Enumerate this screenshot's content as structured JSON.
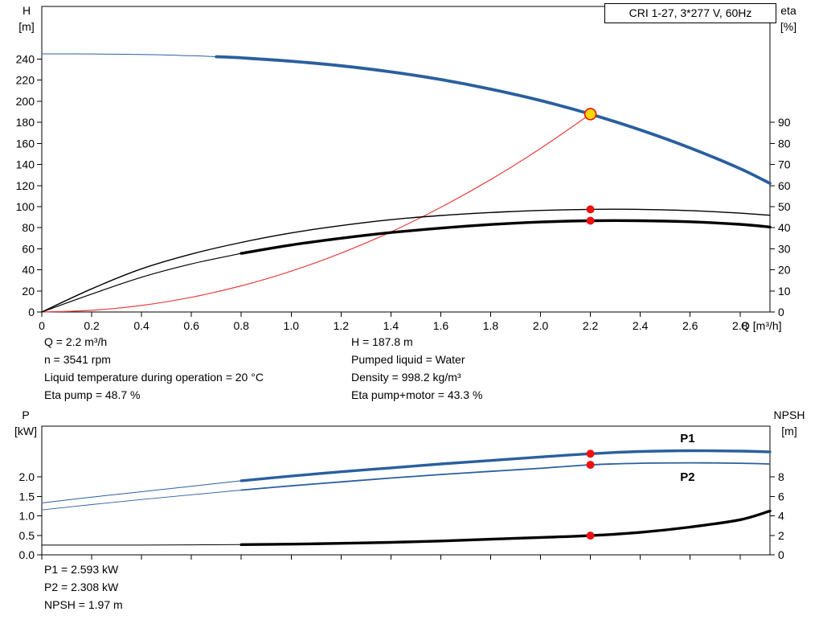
{
  "title_box": "CRI 1-27, 3*277 V, 60Hz",
  "colors": {
    "curve_blue": "#2a5f9e",
    "curve_red": "#e84040",
    "curve_black": "#000000",
    "marker_red": "#ee1111",
    "duty_fill": "#ffd800",
    "duty_ring": "#ee1111",
    "frame": "#000000",
    "series_label_blue": "#2a5f9e"
  },
  "annotations": {
    "mid_left": [
      "Q = 2.2 m³/h",
      "n = 3541 rpm",
      "Liquid temperature during operation = 20 °C",
      "Eta pump = 48.7 %"
    ],
    "mid_right": [
      "H = 187.8 m",
      "Pumped liquid = Water",
      "Density = 998.2 kg/m³",
      "Eta pump+motor = 43.3 %"
    ],
    "bottom": [
      "P1 = 2.593 kW",
      "P2 = 2.308 kW",
      "NPSH = 1.97 m"
    ]
  },
  "chart_data": [
    {
      "type": "line",
      "title": "CRI 1-27, 3*277 V, 60Hz",
      "grid": false,
      "legend": "none",
      "x": {
        "label": "Q [m³/h]",
        "min": 0,
        "max": 2.92,
        "tick_values": [
          0,
          0.2,
          0.4,
          0.6,
          0.8,
          1.0,
          1.2,
          1.4,
          1.6,
          1.8,
          2.0,
          2.2,
          2.4,
          2.6,
          2.8
        ],
        "tick_labels": [
          "0",
          "0.2",
          "0.4",
          "0.6",
          "0.8",
          "1.0",
          "1.2",
          "1.4",
          "1.6",
          "1.8",
          "2.0",
          "2.2",
          "2.4",
          "2.6",
          "2.8"
        ]
      },
      "y_left": {
        "label": "H",
        "unit": "[m]",
        "min": 0,
        "max": 290,
        "tick_values": [
          0,
          20,
          40,
          60,
          80,
          100,
          120,
          140,
          160,
          180,
          200,
          220,
          240
        ],
        "tick_labels": [
          "0",
          "20",
          "40",
          "60",
          "80",
          "100",
          "120",
          "140",
          "160",
          "180",
          "200",
          "220",
          "240"
        ]
      },
      "y_right": {
        "label": "eta",
        "unit": "[%]",
        "min": 0,
        "max": 145,
        "tick_values": [
          0,
          10,
          20,
          30,
          40,
          50,
          60,
          70,
          80,
          90
        ],
        "tick_labels": [
          "0",
          "10",
          "20",
          "30",
          "40",
          "50",
          "60",
          "70",
          "80",
          "90"
        ]
      },
      "series": [
        {
          "name": "head-curve",
          "axis": "left",
          "color_key": "curve_blue",
          "width": 3.8,
          "thin_until": 0.7,
          "thin_width": 1,
          "points": [
            [
              0,
              245
            ],
            [
              0.2,
              244.9
            ],
            [
              0.4,
              244.4
            ],
            [
              0.6,
              243.2
            ],
            [
              0.7,
              242.3
            ],
            [
              0.8,
              241.2
            ],
            [
              1.0,
              238.0
            ],
            [
              1.2,
              233.7
            ],
            [
              1.4,
              227.9
            ],
            [
              1.6,
              220.6
            ],
            [
              1.8,
              211.5
            ],
            [
              2.0,
              200.7
            ],
            [
              2.2,
              187.8
            ],
            [
              2.4,
              172.8
            ],
            [
              2.6,
              155.7
            ],
            [
              2.8,
              136.1
            ],
            [
              2.92,
              122.0
            ]
          ]
        },
        {
          "name": "duty-parabola",
          "axis": "left",
          "color_key": "curve_red",
          "width": 1.2,
          "points": [
            [
              0,
              0
            ],
            [
              0.2,
              1.6
            ],
            [
              0.4,
              6.2
            ],
            [
              0.6,
              14.0
            ],
            [
              0.8,
              24.8
            ],
            [
              1.0,
              38.8
            ],
            [
              1.2,
              55.9
            ],
            [
              1.4,
              76.0
            ],
            [
              1.6,
              99.3
            ],
            [
              1.8,
              125.7
            ],
            [
              2.0,
              155.2
            ],
            [
              2.2,
              187.8
            ]
          ]
        },
        {
          "name": "eta-pump-curve",
          "axis": "right",
          "color_key": "curve_black",
          "width": 1.4,
          "points": [
            [
              0,
              0
            ],
            [
              0.2,
              11
            ],
            [
              0.4,
              20.5
            ],
            [
              0.6,
              27.5
            ],
            [
              0.8,
              33
            ],
            [
              1.0,
              37.5
            ],
            [
              1.2,
              41
            ],
            [
              1.4,
              43.8
            ],
            [
              1.6,
              45.8
            ],
            [
              1.8,
              47.2
            ],
            [
              2.0,
              48.2
            ],
            [
              2.2,
              48.7
            ],
            [
              2.4,
              48.7
            ],
            [
              2.6,
              48.1
            ],
            [
              2.8,
              46.9
            ],
            [
              2.92,
              45.9
            ]
          ]
        },
        {
          "name": "eta-pump-motor-curve",
          "axis": "right",
          "color_key": "curve_black",
          "width": 3.4,
          "thin_until": 0.8,
          "thin_width": 1.2,
          "points": [
            [
              0,
              0
            ],
            [
              0.2,
              8.5
            ],
            [
              0.4,
              16.5
            ],
            [
              0.6,
              22.8
            ],
            [
              0.8,
              27.8
            ],
            [
              1.0,
              31.8
            ],
            [
              1.2,
              35.0
            ],
            [
              1.4,
              37.7
            ],
            [
              1.6,
              39.8
            ],
            [
              1.8,
              41.5
            ],
            [
              2.0,
              42.7
            ],
            [
              2.2,
              43.3
            ],
            [
              2.4,
              43.3
            ],
            [
              2.6,
              42.8
            ],
            [
              2.8,
              41.6
            ],
            [
              2.92,
              40.3
            ]
          ]
        }
      ],
      "markers": [
        {
          "q": 2.2,
          "value": 187.8,
          "axis": "left",
          "style": "duty"
        },
        {
          "q": 2.2,
          "value": 48.7,
          "axis": "right",
          "style": "dot"
        },
        {
          "q": 2.2,
          "value": 43.3,
          "axis": "right",
          "style": "dot"
        }
      ]
    },
    {
      "type": "line",
      "title": "",
      "grid": false,
      "legend": "inline",
      "x": {
        "label": "",
        "min": 0,
        "max": 2.92,
        "tick_values": [
          0,
          0.2,
          0.4,
          0.6,
          0.8,
          1.0,
          1.2,
          1.4,
          1.6,
          1.8,
          2.0,
          2.2,
          2.4,
          2.6,
          2.8
        ],
        "tick_labels": []
      },
      "y_left": {
        "label": "P",
        "unit": "[kW]",
        "min": 0,
        "max": 3.3,
        "tick_values": [
          0,
          0.5,
          1.0,
          1.5,
          2.0
        ],
        "tick_labels": [
          "0.0",
          "0.5",
          "1.0",
          "1.5",
          "2.0"
        ]
      },
      "y_right": {
        "label": "NPSH",
        "unit": "[m]",
        "min": 0,
        "max": 13.2,
        "tick_values": [
          0,
          2,
          4,
          6,
          8
        ],
        "tick_labels": [
          "0",
          "2",
          "4",
          "6",
          "8"
        ]
      },
      "series": [
        {
          "name": "p1-curve",
          "axis": "left",
          "color_key": "curve_blue",
          "width": 3.4,
          "thin_until": 0.8,
          "thin_width": 1,
          "label": "P1",
          "label_at": [
            2.56,
            2.99
          ],
          "points": [
            [
              0,
              1.33
            ],
            [
              0.2,
              1.48
            ],
            [
              0.4,
              1.62
            ],
            [
              0.6,
              1.76
            ],
            [
              0.8,
              1.9
            ],
            [
              1.0,
              2.02
            ],
            [
              1.2,
              2.13
            ],
            [
              1.4,
              2.23
            ],
            [
              1.6,
              2.33
            ],
            [
              1.8,
              2.42
            ],
            [
              2.0,
              2.51
            ],
            [
              2.2,
              2.593
            ],
            [
              2.4,
              2.65
            ],
            [
              2.6,
              2.67
            ],
            [
              2.8,
              2.66
            ],
            [
              2.92,
              2.64
            ]
          ]
        },
        {
          "name": "p2-curve",
          "axis": "left",
          "color_key": "curve_blue",
          "width": 1.8,
          "thin_until": 0.8,
          "thin_width": 0.9,
          "label": "P2",
          "label_at": [
            2.56,
            2.0
          ],
          "points": [
            [
              0,
              1.15
            ],
            [
              0.2,
              1.29
            ],
            [
              0.4,
              1.42
            ],
            [
              0.6,
              1.54
            ],
            [
              0.8,
              1.66
            ],
            [
              1.0,
              1.77
            ],
            [
              1.2,
              1.87
            ],
            [
              1.4,
              1.97
            ],
            [
              1.6,
              2.06
            ],
            [
              1.8,
              2.14
            ],
            [
              2.0,
              2.22
            ],
            [
              2.2,
              2.308
            ],
            [
              2.4,
              2.35
            ],
            [
              2.6,
              2.36
            ],
            [
              2.8,
              2.35
            ],
            [
              2.92,
              2.33
            ]
          ]
        },
        {
          "name": "npsh-curve",
          "axis": "right",
          "color_key": "curve_black",
          "width": 3.4,
          "thin_until": 0.8,
          "thin_width": 1,
          "points": [
            [
              0,
              1.0
            ],
            [
              0.2,
              1.0
            ],
            [
              0.4,
              1.0
            ],
            [
              0.6,
              1.02
            ],
            [
              0.8,
              1.05
            ],
            [
              1.0,
              1.1
            ],
            [
              1.2,
              1.18
            ],
            [
              1.4,
              1.28
            ],
            [
              1.6,
              1.42
            ],
            [
              1.8,
              1.6
            ],
            [
              2.0,
              1.78
            ],
            [
              2.2,
              1.97
            ],
            [
              2.4,
              2.3
            ],
            [
              2.6,
              2.85
            ],
            [
              2.8,
              3.6
            ],
            [
              2.92,
              4.5
            ]
          ]
        }
      ],
      "markers": [
        {
          "q": 2.2,
          "value": 2.593,
          "axis": "left",
          "style": "dot"
        },
        {
          "q": 2.2,
          "value": 2.308,
          "axis": "left",
          "style": "dot"
        },
        {
          "q": 2.2,
          "value": 1.97,
          "axis": "right",
          "style": "dot"
        }
      ]
    }
  ]
}
